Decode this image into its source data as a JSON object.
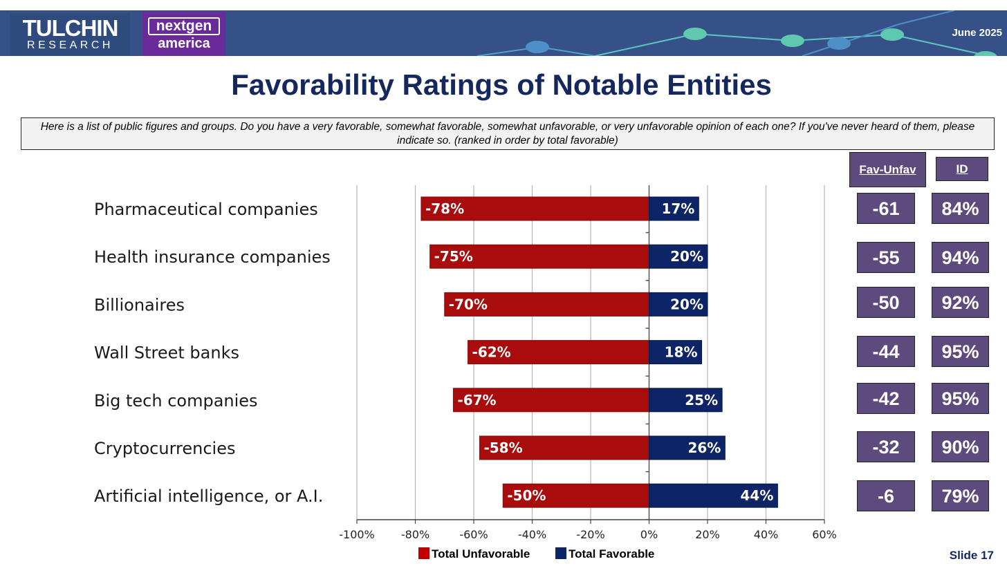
{
  "header": {
    "logo_tulchin_main": "TULCHIN",
    "logo_tulchin_sub": "RESEARCH",
    "logo_nextgen_top": "nextgen",
    "logo_nextgen_bottom": "america",
    "date": "June 2025"
  },
  "title": "Favorability Ratings of Notable Entities",
  "question": "Here is a list of public figures and groups. Do you have a very favorable, somewhat favorable, somewhat unfavorable, or very unfavorable opinion of each one? If you've never heard of them, please indicate so. (ranked in order by total favorable)",
  "columns": {
    "fav_unfav_label": "Fav-Unfav",
    "id_label": "ID"
  },
  "rows": [
    {
      "fav_unfav": "-61",
      "id": "84%"
    },
    {
      "fav_unfav": "-55",
      "id": "94%"
    },
    {
      "fav_unfav": "-50",
      "id": "92%"
    },
    {
      "fav_unfav": "-44",
      "id": "95%"
    },
    {
      "fav_unfav": "-42",
      "id": "95%"
    },
    {
      "fav_unfav": "-32",
      "id": "90%"
    },
    {
      "fav_unfav": "-6",
      "id": "79%"
    }
  ],
  "chart_data": {
    "type": "bar",
    "orientation": "horizontal",
    "stacked": "diverging",
    "categories": [
      "Pharmaceutical companies",
      "Health insurance companies",
      "Billionaires",
      "Wall Street banks",
      "Big tech companies",
      "Cryptocurrencies",
      "Artificial intelligence, or A.I."
    ],
    "series": [
      {
        "name": "Total Unfavorable",
        "color": "#a80c0c",
        "values": [
          -78,
          -75,
          -70,
          -62,
          -67,
          -58,
          -50
        ],
        "labels": [
          "-78%",
          "-75%",
          "-70%",
          "-62%",
          "-67%",
          "-58%",
          "-50%"
        ]
      },
      {
        "name": "Total Favorable",
        "color": "#0d2567",
        "values": [
          17,
          20,
          20,
          18,
          25,
          26,
          44
        ],
        "labels": [
          "17%",
          "20%",
          "20%",
          "18%",
          "25%",
          "26%",
          "44%"
        ]
      }
    ],
    "xlim": [
      -100,
      60
    ],
    "xticks": [
      -100,
      -80,
      -60,
      -40,
      -20,
      0,
      20,
      40,
      60
    ],
    "xtick_labels": [
      "-100%",
      "-80%",
      "-60%",
      "-40%",
      "-20%",
      "0%",
      "20%",
      "40%",
      "60%"
    ],
    "grid": true,
    "legend": "bottom"
  },
  "footer": {
    "slide": "Slide 17"
  }
}
